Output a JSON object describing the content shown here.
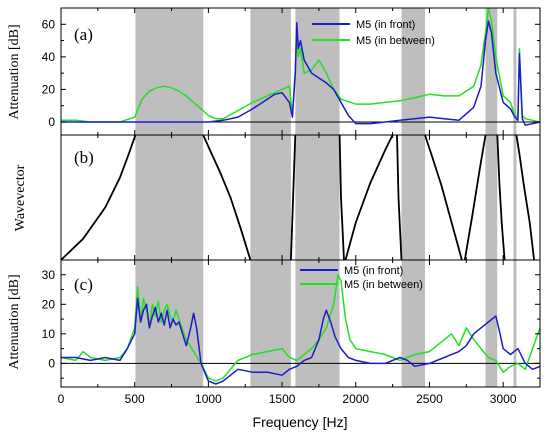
{
  "xlabel": "Frequency [Hz]",
  "x_ticks": [
    "0",
    "500",
    "1000",
    "1500",
    "2000",
    "2500",
    "3000"
  ],
  "bandgaps": [
    [
      505,
      965
    ],
    [
      1285,
      1560
    ],
    [
      1590,
      1890
    ],
    [
      2310,
      2470
    ],
    [
      2880,
      2960
    ],
    [
      3070,
      3090
    ]
  ],
  "colors": {
    "front": "#1c1cc8",
    "between": "#22e022",
    "band": "#bebebe",
    "branch": "#000000"
  },
  "chart_data": [
    {
      "type": "line",
      "panel_label": "(a)",
      "ylabel": "Attenuation [dB]",
      "xlim": [
        0,
        3250
      ],
      "ylim": [
        -8,
        70
      ],
      "y_ticks": [
        0,
        20,
        40,
        60
      ],
      "legend": "top-right",
      "series": [
        {
          "name": "M5 (in front)",
          "color": "#1c1cc8",
          "x": [
            0,
            100,
            200,
            300,
            400,
            500,
            600,
            700,
            800,
            900,
            1000,
            1100,
            1200,
            1300,
            1400,
            1450,
            1500,
            1550,
            1570,
            1590,
            1600,
            1610,
            1625,
            1650,
            1700,
            1750,
            1800,
            1850,
            1900,
            1950,
            2000,
            2100,
            2200,
            2300,
            2400,
            2500,
            2600,
            2700,
            2800,
            2850,
            2880,
            2900,
            2920,
            2950,
            3000,
            3050,
            3080,
            3100,
            3110,
            3130,
            3150,
            3200,
            3250
          ],
          "y": [
            0,
            0,
            0,
            0,
            0,
            0,
            0,
            0,
            0,
            0,
            0,
            1,
            3,
            8,
            14,
            17,
            18,
            12,
            3,
            30,
            61,
            45,
            50,
            38,
            30,
            27,
            24,
            20,
            12,
            4,
            -1,
            -1,
            0,
            1,
            2,
            3,
            2,
            1,
            9,
            22,
            50,
            62,
            55,
            30,
            12,
            8,
            3,
            1,
            42,
            2,
            -2,
            -1,
            0
          ]
        },
        {
          "name": "M5 (in between)",
          "color": "#22e022",
          "x": [
            0,
            100,
            200,
            300,
            400,
            500,
            550,
            600,
            650,
            700,
            750,
            800,
            850,
            900,
            950,
            1000,
            1050,
            1100,
            1200,
            1300,
            1400,
            1500,
            1550,
            1570,
            1590,
            1600,
            1610,
            1625,
            1650,
            1700,
            1750,
            1800,
            1850,
            1900,
            2000,
            2100,
            2200,
            2300,
            2400,
            2500,
            2600,
            2700,
            2800,
            2850,
            2880,
            2900,
            2920,
            2950,
            3000,
            3050,
            3080,
            3100,
            3110,
            3130,
            3150,
            3200,
            3250
          ],
          "y": [
            1,
            1,
            0,
            0,
            0,
            3,
            14,
            19,
            21,
            22,
            21,
            19,
            16,
            12,
            8,
            4,
            2,
            2,
            7,
            12,
            16,
            20,
            22,
            4,
            32,
            58,
            40,
            45,
            30,
            32,
            38,
            30,
            20,
            14,
            11,
            11,
            12,
            13,
            15,
            17,
            16,
            16,
            22,
            35,
            55,
            70,
            62,
            40,
            16,
            12,
            4,
            3,
            45,
            4,
            2,
            1,
            0
          ]
        }
      ]
    },
    {
      "type": "line",
      "panel_label": "(b)",
      "ylabel": "Wavevector",
      "xlim": [
        0,
        3250
      ],
      "ylim": [
        0,
        1
      ],
      "branches": [
        {
          "x": [
            0,
            150,
            300,
            400,
            460,
            505
          ],
          "y": [
            0,
            0.17,
            0.42,
            0.66,
            0.85,
            1
          ]
        },
        {
          "x": [
            965,
            1010,
            1080,
            1150,
            1220,
            1285
          ],
          "y": [
            1,
            0.88,
            0.7,
            0.5,
            0.25,
            0
          ]
        },
        {
          "x": [
            1560,
            1575,
            1590
          ],
          "y": [
            0,
            0.5,
            1
          ]
        },
        {
          "x": [
            1890,
            1900,
            1920
          ],
          "y": [
            1,
            0.5,
            0
          ]
        },
        {
          "x": [
            1930,
            2000,
            2100,
            2200,
            2250
          ],
          "y": [
            0,
            0.3,
            0.62,
            0.88,
            1
          ]
        },
        {
          "x": [
            2280,
            2290,
            2310
          ],
          "y": [
            1,
            0.5,
            0
          ]
        },
        {
          "x": [
            2470,
            2520,
            2580,
            2650,
            2720
          ],
          "y": [
            1,
            0.82,
            0.6,
            0.3,
            0
          ]
        },
        {
          "x": [
            2740,
            2790,
            2840,
            2880
          ],
          "y": [
            0,
            0.35,
            0.72,
            1
          ]
        },
        {
          "x": [
            2960,
            2975,
            2990,
            3010
          ],
          "y": [
            1,
            0.6,
            0.3,
            0
          ]
        },
        {
          "x": [
            3090,
            3110,
            3140,
            3180,
            3210
          ],
          "y": [
            1,
            0.85,
            0.6,
            0.3,
            0
          ]
        }
      ]
    },
    {
      "type": "line",
      "panel_label": "(c)",
      "ylabel": "Attenuation [dB]",
      "xlim": [
        0,
        3250
      ],
      "ylim": [
        -8,
        35
      ],
      "y_ticks": [
        0,
        10,
        20,
        30
      ],
      "legend": "top-right",
      "series": [
        {
          "name": "M5 (in front)",
          "color": "#1c1cc8",
          "x": [
            0,
            100,
            200,
            300,
            400,
            450,
            500,
            520,
            540,
            560,
            580,
            600,
            620,
            640,
            660,
            680,
            700,
            720,
            740,
            760,
            780,
            800,
            850,
            880,
            900,
            920,
            950,
            1000,
            1050,
            1100,
            1200,
            1300,
            1400,
            1500,
            1550,
            1600,
            1650,
            1700,
            1750,
            1780,
            1800,
            1830,
            1860,
            1900,
            1950,
            2000,
            2100,
            2200,
            2300,
            2350,
            2400,
            2500,
            2600,
            2700,
            2750,
            2800,
            2850,
            2900,
            2950,
            2970,
            3000,
            3050,
            3100,
            3150,
            3200,
            3250
          ],
          "y": [
            2,
            2,
            1,
            2,
            1,
            5,
            10,
            22,
            14,
            18,
            20,
            12,
            16,
            19,
            14,
            17,
            13,
            18,
            12,
            15,
            13,
            14,
            6,
            12,
            17,
            12,
            0,
            -6,
            -7,
            -6,
            -2,
            -3,
            -3,
            -4,
            -2,
            -1,
            1,
            2,
            8,
            15,
            18,
            14,
            9,
            5,
            2,
            1,
            0,
            0,
            2,
            1,
            -1,
            0,
            2,
            4,
            6,
            10,
            12,
            14,
            16,
            12,
            5,
            3,
            5,
            0,
            -2,
            -1
          ]
        },
        {
          "name": "M5 (in between)",
          "color": "#22e022",
          "x": [
            0,
            100,
            150,
            200,
            300,
            400,
            450,
            500,
            520,
            540,
            560,
            580,
            600,
            620,
            640,
            660,
            680,
            700,
            720,
            740,
            760,
            780,
            800,
            820,
            850,
            900,
            950,
            1000,
            1050,
            1100,
            1200,
            1300,
            1400,
            1500,
            1550,
            1600,
            1650,
            1700,
            1750,
            1800,
            1850,
            1880,
            1900,
            1930,
            1960,
            2000,
            2100,
            2200,
            2300,
            2400,
            2500,
            2600,
            2650,
            2700,
            2750,
            2800,
            2850,
            2900,
            2950,
            3000,
            3050,
            3100,
            3150,
            3200,
            3250
          ],
          "y": [
            2,
            1,
            4,
            2,
            1,
            2,
            5,
            12,
            26,
            14,
            22,
            18,
            12,
            20,
            16,
            21,
            14,
            18,
            20,
            16,
            14,
            18,
            15,
            12,
            8,
            4,
            0,
            -5,
            -6,
            -5,
            1,
            3,
            4,
            5,
            2,
            1,
            3,
            5,
            8,
            12,
            20,
            30,
            28,
            15,
            8,
            5,
            4,
            3,
            1,
            3,
            4,
            8,
            10,
            6,
            12,
            8,
            5,
            2,
            1,
            -3,
            -1,
            0,
            -2,
            5,
            12
          ]
        }
      ]
    }
  ]
}
